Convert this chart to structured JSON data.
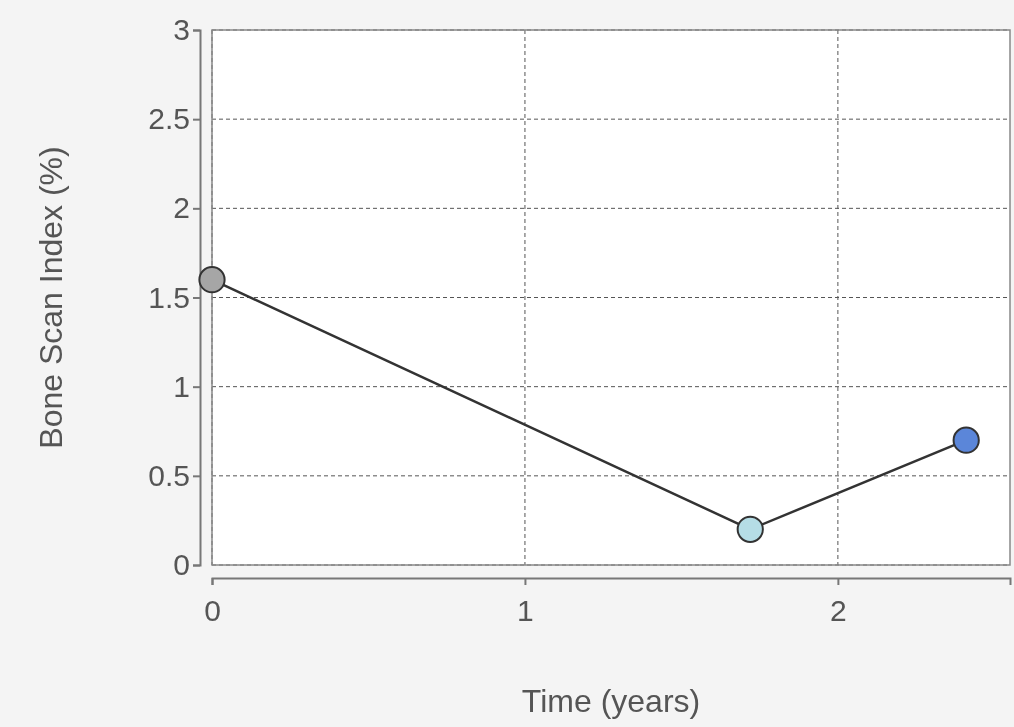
{
  "chart_data": {
    "type": "line",
    "xlabel": "Time (years)",
    "ylabel": "Bone Scan Index (%)",
    "xlim": [
      0,
      2.55
    ],
    "ylim": [
      0,
      3
    ],
    "xticks": [
      0,
      1,
      2
    ],
    "yticks": [
      0,
      0.5,
      1,
      1.5,
      2,
      2.5,
      3
    ],
    "grid": true,
    "marker": "circle",
    "line_style": "solid",
    "x": [
      0,
      1.72,
      2.41
    ],
    "series": [
      {
        "color": "#333333",
        "colors": [
          "#a6a6a6",
          "#b5dde6",
          "#5b86d9"
        ],
        "values": [
          1.6,
          0.2,
          0.7
        ]
      }
    ]
  }
}
